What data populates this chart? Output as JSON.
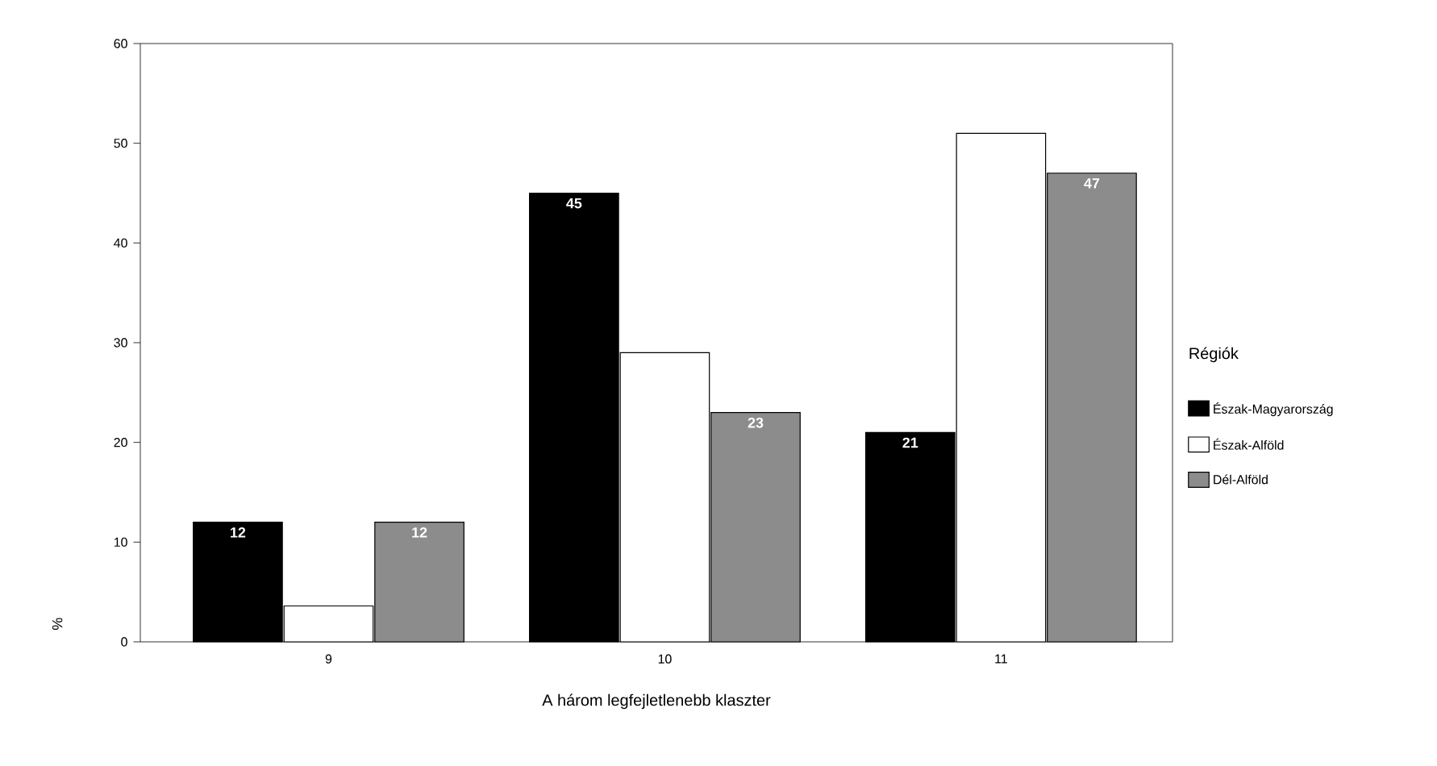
{
  "chart_data": {
    "type": "bar",
    "xlabel": "A három legfejletlenebb klaszter",
    "ylabel": "%",
    "legend_title": "Régiók",
    "legend": "right",
    "categories": [
      "9",
      "10",
      "11"
    ],
    "series": [
      {
        "name": "Észak-Magyarország",
        "color": "#000000",
        "values": [
          12,
          45,
          21
        ],
        "value_labels": [
          "12",
          "45",
          "21"
        ]
      },
      {
        "name": "Észak-Alföld",
        "color": "#ffffff",
        "values": [
          3.6,
          29,
          51
        ]
      },
      {
        "name": "Dél-Alföld",
        "color": "#8c8c8c",
        "values": [
          12,
          23,
          47
        ],
        "value_labels": [
          "12",
          "23",
          "47"
        ]
      }
    ],
    "ylim": [
      0,
      60
    ],
    "yticks": [
      0,
      10,
      20,
      30,
      40,
      50,
      60
    ],
    "grid": false
  }
}
